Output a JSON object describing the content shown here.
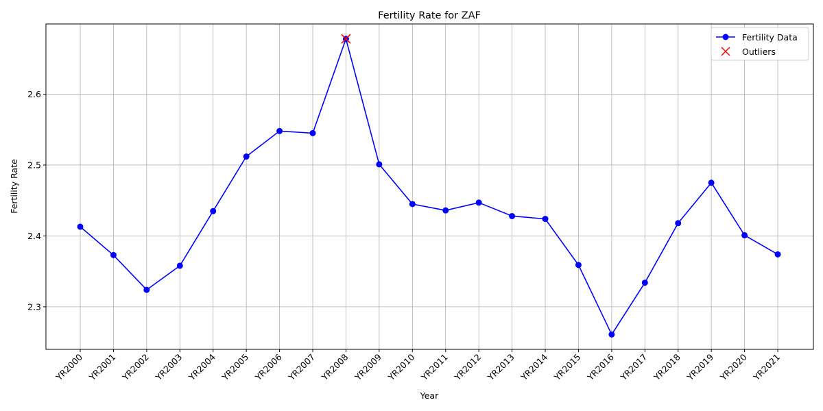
{
  "chart_data": {
    "type": "line",
    "title": "Fertility Rate for ZAF",
    "xlabel": "Year",
    "ylabel": "Fertility Rate",
    "categories": [
      "YR2000",
      "YR2001",
      "YR2002",
      "YR2003",
      "YR2004",
      "YR2005",
      "YR2006",
      "YR2007",
      "YR2008",
      "YR2009",
      "YR2010",
      "YR2011",
      "YR2012",
      "YR2013",
      "YR2014",
      "YR2015",
      "YR2016",
      "YR2017",
      "YR2018",
      "YR2019",
      "YR2020",
      "YR2021"
    ],
    "series": [
      {
        "name": "Fertility Data",
        "color": "#0000ff",
        "marker": "circle",
        "values": [
          2.413,
          2.373,
          2.324,
          2.358,
          2.435,
          2.512,
          2.548,
          2.545,
          2.678,
          2.501,
          2.445,
          2.436,
          2.447,
          2.428,
          2.424,
          2.359,
          2.261,
          2.334,
          2.418,
          2.475,
          2.401,
          2.374
        ]
      },
      {
        "name": "Outliers",
        "color": "#ff0000",
        "marker": "x",
        "points": [
          {
            "x": "YR2008",
            "y": 2.678
          }
        ]
      }
    ],
    "yticks": [
      2.3,
      2.4,
      2.5,
      2.6
    ],
    "ylim": [
      2.24,
      2.699
    ],
    "grid": true,
    "legend": "top-right"
  }
}
